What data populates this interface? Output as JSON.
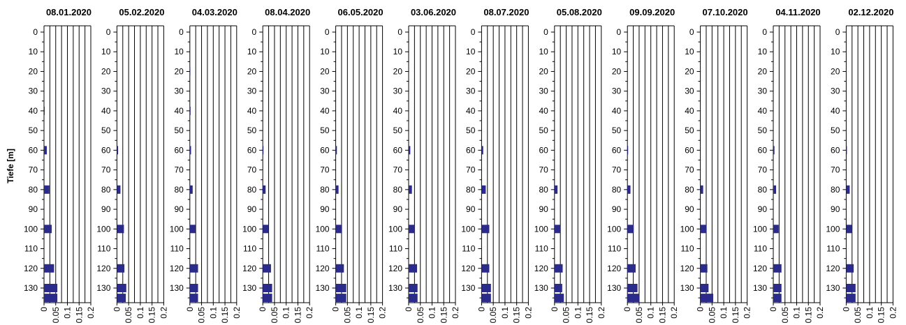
{
  "colors": {
    "bar": "#2b2b8c",
    "axis": "#000000"
  },
  "chart_data": {
    "type": "bar",
    "orientation": "horizontal",
    "ylabel": "Tiefe [m]",
    "depth_ticks": [
      0,
      10,
      20,
      30,
      40,
      50,
      60,
      70,
      80,
      90,
      100,
      110,
      120,
      130
    ],
    "ylim": [
      0,
      137
    ],
    "xlim": [
      0,
      0.2
    ],
    "x_ticks": [
      0,
      0.05,
      0.1,
      0.15,
      0.2
    ],
    "x_tick_labels": [
      "0",
      "0.05",
      "0.1",
      "0.15",
      "0.2"
    ],
    "grid": "vertical",
    "bar_depths": [
      0,
      20,
      40,
      60,
      80,
      100,
      120,
      130,
      135
    ],
    "panels": [
      {
        "title": "08.01.2020",
        "values": [
          0.0,
          0.0,
          0.003,
          0.012,
          0.023,
          0.033,
          0.043,
          0.057,
          0.057
        ]
      },
      {
        "title": "05.02.2020",
        "values": [
          0.0,
          0.0,
          0.0,
          0.005,
          0.015,
          0.03,
          0.032,
          0.04,
          0.038
        ]
      },
      {
        "title": "04.03.2020",
        "values": [
          0.0,
          0.002,
          0.003,
          0.005,
          0.012,
          0.025,
          0.035,
          0.035,
          0.035
        ]
      },
      {
        "title": "08.04.2020",
        "values": [
          0.0,
          0.0,
          0.0,
          0.003,
          0.012,
          0.025,
          0.035,
          0.04,
          0.04
        ]
      },
      {
        "title": "06.05.2020",
        "values": [
          0.0,
          0.0,
          0.0,
          0.005,
          0.012,
          0.027,
          0.035,
          0.045,
          0.045
        ]
      },
      {
        "title": "03.06.2020",
        "values": [
          0.0,
          0.0,
          0.0,
          0.007,
          0.014,
          0.027,
          0.036,
          0.038,
          0.038
        ]
      },
      {
        "title": "08.07.2020",
        "values": [
          0.0,
          0.0,
          0.0,
          0.007,
          0.018,
          0.033,
          0.033,
          0.04,
          0.04
        ]
      },
      {
        "title": "05.08.2020",
        "values": [
          0.0,
          0.0,
          0.0,
          0.0,
          0.013,
          0.025,
          0.035,
          0.033,
          0.04
        ]
      },
      {
        "title": "09.09.2020",
        "values": [
          0.0,
          0.0,
          0.0,
          0.003,
          0.013,
          0.027,
          0.035,
          0.043,
          0.05
        ]
      },
      {
        "title": "07.10.2020",
        "values": [
          0.0,
          0.0,
          0.0,
          0.0,
          0.012,
          0.025,
          0.03,
          0.035,
          0.055
        ]
      },
      {
        "title": "04.11.2020",
        "values": [
          0.0,
          0.0,
          0.0,
          0.005,
          0.012,
          0.023,
          0.035,
          0.035,
          0.035
        ]
      },
      {
        "title": "02.12.2020",
        "values": [
          0.0,
          0.0,
          0.0,
          0.003,
          0.015,
          0.025,
          0.032,
          0.04,
          0.04
        ]
      }
    ]
  }
}
